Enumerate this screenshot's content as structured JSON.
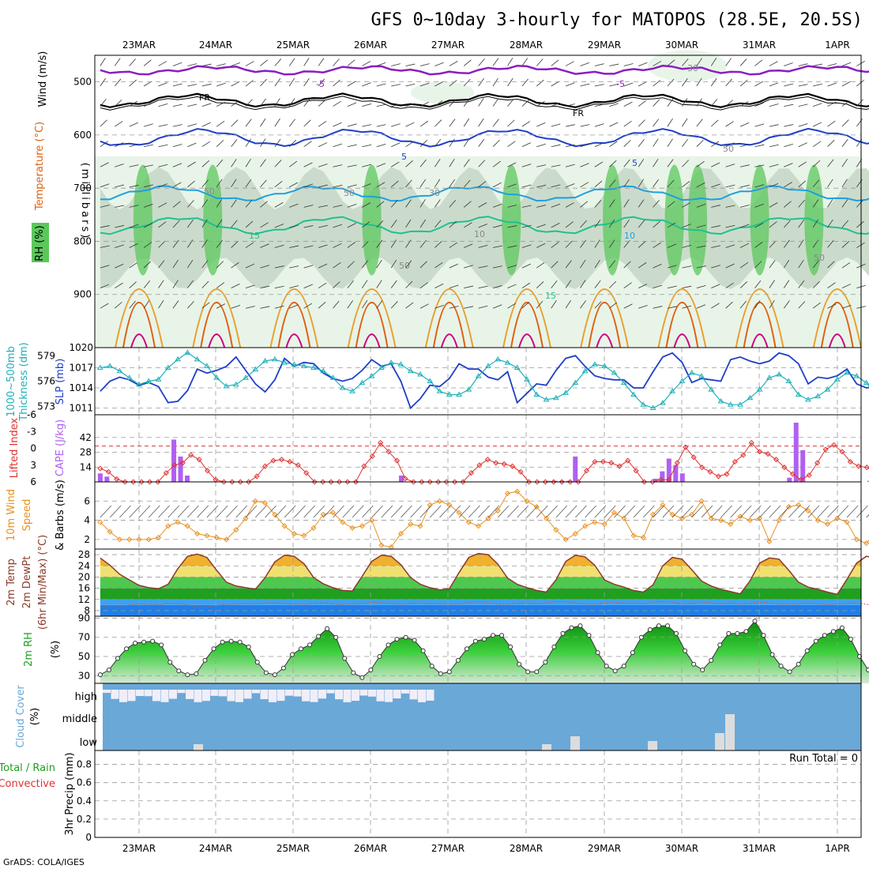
{
  "title": "GFS 0~10day 3-hourly for MATOPOS (28.5E, 20.5S)",
  "credit": "GrADS: COLA/IGES",
  "dates": [
    "23MAR",
    "24MAR",
    "25MAR",
    "26MAR",
    "27MAR",
    "28MAR",
    "29MAR",
    "30MAR",
    "31MAR",
    "1APR"
  ],
  "colors": {
    "rh_light": "#e8f4e8",
    "rh_mid": "#c8d8c8",
    "rh_green": "#5cc85c",
    "temp_purple": "#8a1fc0",
    "temp_blue": "#1f3fc8",
    "temp_light": "#1f9fe0",
    "temp_teal": "#1fc090",
    "temp_orange": "#e8a030",
    "temp_red": "#e06010",
    "temp_magenta": "#d0007f",
    "slp": "#1f3fc8",
    "thick": "#20b0b8",
    "cape": "#b060f0",
    "li": "#e03030",
    "wind": "#e89020",
    "temp2m": "#8b3a2a",
    "cloud": "#6aa8d8",
    "cloud_high": "#f0eef8"
  },
  "chart_data": [
    {
      "type": "heatmap",
      "name": "cross-section",
      "ylabel": "(millibars)",
      "left_labels": [
        "Wind (m/s)",
        "Temperature (°C)",
        "RH (%)"
      ],
      "yticks": [
        500,
        600,
        700,
        800,
        900
      ],
      "ylim": [
        1000,
        450
      ],
      "contour_labels": [
        "-5",
        "-5",
        "FR",
        "FR",
        "5",
        "5",
        "10",
        "30",
        "50",
        "50",
        "50",
        "50",
        "15",
        "15",
        "10",
        "30",
        "50"
      ]
    },
    {
      "type": "line",
      "name": "slp-thickness",
      "left_labels": [
        "1000~500mb",
        "Thickness (dm)",
        "SLP (mb)"
      ],
      "yticks_left": [
        573,
        576,
        579
      ],
      "yticks_right": [
        1011,
        1014,
        1017,
        1020
      ],
      "series": [
        {
          "name": "SLP (mb)",
          "values": [
            1013.5,
            1015.0,
            1015.6,
            1015.2,
            1014.4,
            1014.8,
            1014.2,
            1011.8,
            1012.0,
            1013.6,
            1016.8,
            1016.2,
            1016.6,
            1017.2,
            1018.6,
            1016.6,
            1014.6,
            1013.4,
            1015.2,
            1018.4,
            1017.2,
            1017.8,
            1017.6,
            1016.2,
            1015.4,
            1015.0,
            1015.4,
            1016.6,
            1018.2,
            1017.2,
            1017.6,
            1015.0,
            1011.0,
            1012.4,
            1014.4,
            1014.2,
            1015.4,
            1017.6,
            1016.8,
            1016.8,
            1015.6,
            1015.2,
            1016.4,
            1011.8,
            1013.2,
            1014.6,
            1014.4,
            1016.6,
            1018.4,
            1018.8,
            1017.2,
            1015.8,
            1015.4,
            1015.2,
            1015.2,
            1014.0,
            1014.0,
            1016.4,
            1018.6,
            1019.2,
            1017.8,
            1014.8,
            1015.4,
            1015.2,
            1015.0,
            1018.2,
            1018.6,
            1018.0,
            1017.6,
            1018.0,
            1019.2,
            1018.8,
            1017.6,
            1014.6,
            1015.6,
            1015.4,
            1015.8,
            1016.8,
            1014.6,
            1014.0,
            1014.2,
            1012.2,
            1015.0,
            1015.8,
            1016.2,
            1016.8,
            1017.6
          ]
        },
        {
          "name": "Thickness (dm)",
          "values": [
            577.6,
            577.8,
            577.2,
            576.4,
            575.6,
            576.0,
            576.2,
            577.6,
            578.6,
            579.4,
            578.6,
            577.8,
            576.4,
            575.4,
            575.6,
            576.4,
            577.4,
            578.4,
            578.6,
            578.2,
            578.0,
            577.8,
            577.6,
            577.2,
            576.4,
            575.2,
            574.8,
            575.8,
            576.6,
            577.6,
            578.2,
            578.0,
            577.2,
            576.8,
            576.0,
            574.8,
            574.4,
            574.4,
            575.0,
            576.6,
            577.8,
            578.6,
            578.2,
            577.6,
            576.2,
            574.4,
            573.8,
            574.0,
            574.6,
            575.8,
            577.2,
            578.0,
            577.8,
            577.0,
            575.8,
            574.4,
            573.2,
            572.8,
            573.4,
            574.8,
            576.0,
            577.0,
            576.6,
            575.0,
            573.6,
            573.2,
            573.2,
            574.0,
            575.0,
            576.4,
            576.8,
            576.0,
            574.4,
            573.8,
            574.2,
            575.0,
            576.2,
            577.0,
            576.6,
            575.8,
            574.4,
            573.6,
            573.0,
            573.2,
            574.2,
            573.8,
            573.2
          ]
        }
      ]
    },
    {
      "type": "bar",
      "name": "cape-li",
      "left_labels": [
        "Lifted Index",
        "CAPE (J/kg)"
      ],
      "yticks_left": [
        "6",
        "3",
        "0",
        "-3",
        "-6"
      ],
      "yticks_right": [
        14,
        28,
        42
      ],
      "cape_values": [
        8,
        5,
        0,
        0,
        0,
        0,
        0,
        0,
        0,
        0,
        0,
        40,
        24,
        6,
        0,
        0,
        0,
        0,
        0,
        0,
        0,
        0,
        0,
        0,
        0,
        0,
        0,
        0,
        0,
        0,
        0,
        0,
        0,
        0,
        0,
        0,
        0,
        0,
        0,
        0,
        0,
        0,
        0,
        0,
        0,
        6,
        0,
        0,
        0,
        0,
        0,
        0,
        0,
        0,
        0,
        0,
        0,
        0,
        0,
        0,
        0,
        0,
        0,
        0,
        0,
        0,
        0,
        1,
        1,
        1,
        1,
        24,
        0,
        0,
        0,
        0,
        0,
        0,
        0,
        0,
        0,
        0,
        0,
        3,
        10,
        22,
        16,
        8,
        0,
        0,
        0,
        0,
        0,
        0,
        0,
        0,
        0,
        0,
        0,
        0,
        0,
        0,
        0,
        4,
        56,
        30,
        0,
        0,
        0,
        0,
        0,
        0,
        0,
        0,
        0,
        1,
        0,
        0,
        0,
        0,
        0,
        0,
        0,
        0
      ],
      "li_values": [
        3.6,
        4.2,
        5.5,
        6,
        6,
        6,
        6,
        6,
        4.4,
        3.0,
        2.6,
        1.2,
        2.0,
        4.0,
        5.6,
        6,
        6,
        6,
        6,
        5.0,
        3.2,
        2.2,
        2.0,
        2.4,
        3.0,
        4.4,
        6,
        6,
        6,
        6,
        6,
        6,
        3.2,
        1.4,
        -1.0,
        0.6,
        2.2,
        5.4,
        6,
        6,
        6,
        6,
        6,
        6,
        6,
        4.4,
        3.0,
        2.0,
        2.6,
        2.8,
        3.2,
        4.2,
        6,
        6,
        6,
        6,
        6,
        6,
        6,
        4.0,
        2.4,
        2.4,
        2.6,
        3.2,
        2.2,
        4.0,
        6,
        6,
        5.6,
        5.6,
        2.6,
        -0.2,
        1.6,
        3.4,
        4.2,
        5.0,
        4.6,
        2.4,
        1.2,
        -1.0,
        0.6,
        1.0,
        2.0,
        3.4,
        4.6,
        5.6,
        4.8,
        2.6,
        0.2,
        -0.6,
        0.6,
        2.4,
        3.2,
        3.4,
        4.0,
        2.0,
        0.8,
        0.6,
        0.4,
        0.6,
        1.0,
        -0.4
      ]
    },
    {
      "type": "line",
      "name": "wind-10m",
      "left_labels": [
        "10m Wind",
        "Speed",
        "& Barbs (m/s)"
      ],
      "yticks": [
        2,
        4,
        6
      ],
      "series": [
        {
          "name": "10m Wind Speed",
          "values": [
            3.8,
            2.8,
            2.0,
            2.0,
            2.0,
            2.0,
            2.2,
            3.4,
            3.8,
            3.4,
            2.6,
            2.4,
            2.2,
            2.0,
            3.0,
            4.2,
            6.0,
            5.8,
            4.6,
            3.4,
            2.6,
            2.4,
            3.2,
            4.6,
            4.8,
            3.8,
            3.2,
            3.4,
            4.0,
            1.4,
            1.2,
            2.6,
            3.6,
            3.4,
            5.6,
            6.0,
            5.6,
            4.8,
            3.8,
            3.4,
            4.2,
            5.0,
            6.8,
            7.0,
            6.0,
            5.4,
            4.2,
            3.0,
            2.0,
            2.6,
            3.4,
            3.8,
            3.6,
            4.8,
            4.2,
            2.4,
            2.2,
            4.6,
            5.6,
            4.6,
            4.2,
            4.6,
            6.0,
            4.2,
            4.0,
            3.6,
            4.4,
            4.0,
            4.2,
            1.8,
            4.0,
            5.4,
            5.6,
            5.0,
            4.0,
            3.6,
            4.2,
            3.8,
            2.0,
            1.6,
            2.8,
            4.2,
            3.8,
            3.6,
            2.6,
            4.6
          ]
        }
      ]
    },
    {
      "type": "area",
      "name": "temp-2m",
      "left_labels": [
        "2m Temp",
        "2m DewPt",
        "(6hr Min/Max) (°C)"
      ],
      "yticks": [
        8,
        12,
        16,
        20,
        24,
        28
      ],
      "series": [
        {
          "name": "2m Temp",
          "values": [
            26.8,
            24.2,
            21.0,
            19.0,
            17.0,
            16.2,
            15.8,
            17.4,
            23.0,
            27.4,
            28.2,
            27.0,
            22.4,
            18.2,
            16.8,
            16.2,
            15.6,
            19.8,
            25.4,
            27.8,
            27.4,
            24.8,
            19.8,
            17.6,
            16.2,
            15.2,
            15.0,
            20.2,
            25.6,
            27.8,
            27.4,
            24.4,
            19.8,
            17.4,
            16.2,
            15.4,
            15.8,
            21.6,
            27.0,
            28.4,
            28.0,
            24.6,
            19.6,
            17.4,
            16.2,
            15.2,
            14.6,
            19.0,
            25.6,
            27.8,
            27.2,
            24.2,
            19.0,
            17.4,
            16.4,
            15.2,
            14.6,
            17.2,
            24.0,
            27.0,
            26.4,
            22.6,
            18.6,
            16.8,
            15.6,
            14.8,
            14.0,
            18.6,
            25.0,
            26.8,
            26.4,
            22.4,
            18.2,
            16.4,
            15.6,
            14.6,
            13.8,
            19.2,
            25.0,
            27.4,
            26.8,
            22.8,
            18.8,
            17.2,
            16.0,
            15.0,
            14.4,
            18.8,
            25.8
          ]
        },
        {
          "name": "2m DewPt",
          "values": [
            9.0,
            9.8,
            9.6,
            10.0,
            10.4,
            10.2,
            10.0,
            10.6,
            10.6,
            10.0,
            9.4,
            9.2,
            9.8,
            10.2,
            10.2,
            10.6,
            10.4,
            10.8,
            10.8,
            10.6,
            10.4,
            10.2,
            10.6,
            10.8,
            10.4,
            10.0,
            10.4,
            10.6,
            11.0,
            10.8,
            10.6,
            10.2,
            10.6,
            10.8,
            10.4,
            10.6,
            10.2,
            10.4,
            11.0,
            11.2,
            11.0,
            10.4,
            10.2,
            10.6,
            10.8,
            10.4,
            10.8,
            11.2,
            11.2,
            10.8,
            10.4,
            10.2,
            10.8,
            11.0,
            10.6,
            10.8,
            10.4,
            11.0,
            11.2,
            11.0,
            10.4,
            10.6,
            11.0,
            10.8,
            10.4,
            10.8,
            10.2,
            10.6,
            11.0,
            10.8,
            10.4,
            10.2,
            10.4,
            10.8,
            10.4,
            10.0,
            10.4,
            10.6,
            10.8,
            10.2,
            10.0,
            9.6,
            10.2,
            10.4,
            10.0,
            9.8,
            10.2,
            10.6,
            10.4
          ]
        }
      ]
    },
    {
      "type": "area",
      "name": "rh-2m",
      "left_labels": [
        "2m RH",
        "(%)"
      ],
      "yticks": [
        30,
        50,
        70,
        90
      ],
      "series": [
        {
          "name": "2m RH",
          "values": [
            31,
            36,
            48,
            58,
            64,
            65,
            66,
            62,
            44,
            35,
            31,
            32,
            46,
            58,
            65,
            66,
            65,
            60,
            44,
            33,
            31,
            38,
            52,
            58,
            62,
            71,
            79,
            70,
            48,
            33,
            28,
            36,
            50,
            62,
            68,
            70,
            67,
            56,
            40,
            32,
            34,
            46,
            58,
            66,
            68,
            72,
            72,
            60,
            42,
            34,
            34,
            44,
            60,
            74,
            80,
            82,
            72,
            54,
            40,
            35,
            40,
            54,
            70,
            78,
            82,
            82,
            74,
            56,
            42,
            36,
            46,
            62,
            74,
            74,
            76,
            87,
            72,
            52,
            40,
            34,
            42,
            56,
            66,
            72,
            76,
            80,
            68,
            50,
            36,
            30,
            40,
            54,
            60,
            62,
            70,
            73
          ]
        }
      ]
    },
    {
      "type": "bar",
      "name": "cloud-cover",
      "left_labels": [
        "Cloud Cover",
        "(%)"
      ],
      "ytick_labels": [
        "high",
        "middle",
        "low"
      ]
    },
    {
      "type": "bar",
      "name": "precip",
      "left_labels": [
        "Total / Rain",
        "Convective",
        "3hr Precip (mm)"
      ],
      "yticks": [
        "0",
        "0.2",
        "0.4",
        "0.6",
        "0.8"
      ],
      "annotation": "Run Total = 0",
      "values": []
    }
  ]
}
